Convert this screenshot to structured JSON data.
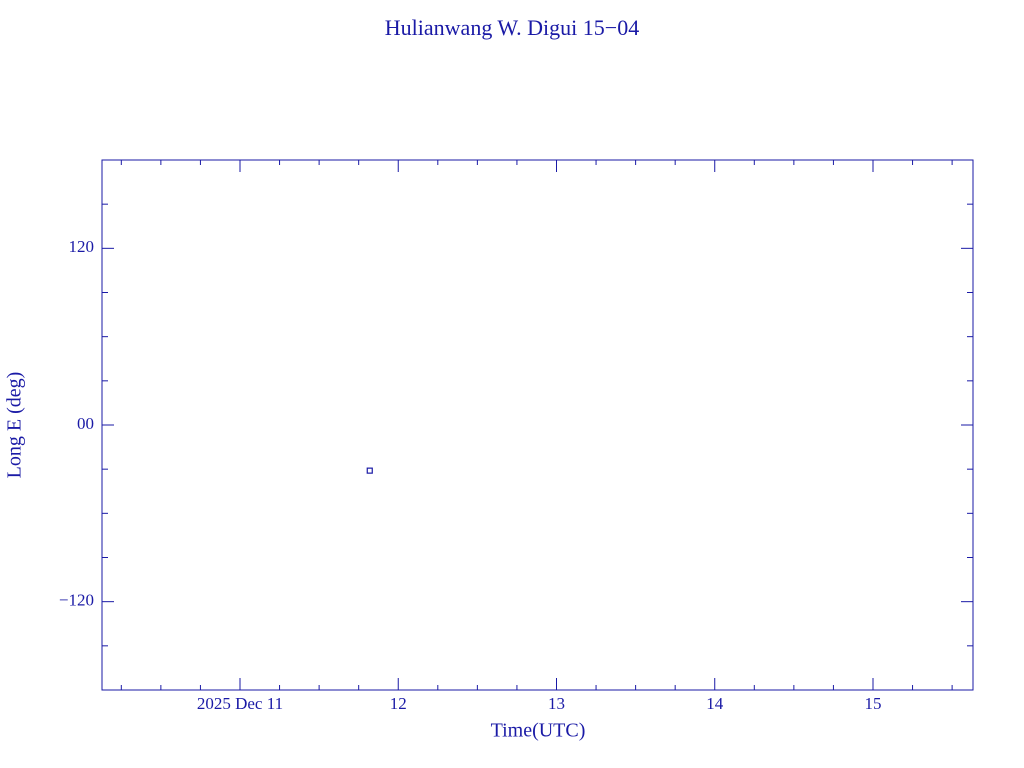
{
  "chart_data": {
    "type": "scatter",
    "title": "Hulianwang W. Digui 15−04",
    "x_label": "Time(UTC)",
    "y_label": "Long E (deg)",
    "series": [
      {
        "color": "#1a1aa6",
        "x": [
          11.82
        ],
        "values": [
          -31
        ]
      }
    ],
    "xlim": [
      10.128,
      15.632
    ],
    "xticks": [
      {
        "value": 11,
        "label": "2025 Dec 11"
      },
      12,
      13,
      14,
      15
    ],
    "x_minor_ticks": [
      10.25,
      10.5,
      10.75,
      11.25,
      11.5,
      11.75,
      12.25,
      12.5,
      12.75,
      13.25,
      13.5,
      13.75,
      14.25,
      14.5,
      14.75,
      15.25,
      15.5
    ],
    "ylim": [
      -180,
      180
    ],
    "yticks": [
      {
        "value": 120,
        "label": "120"
      },
      {
        "value": 0,
        "label": "00"
      },
      {
        "value": -120,
        "label": "−120"
      }
    ],
    "y_minor_ticks": [
      -150,
      -90,
      -60,
      -30,
      30,
      60,
      90,
      150
    ],
    "axis_color": "#1a1aa6"
  }
}
